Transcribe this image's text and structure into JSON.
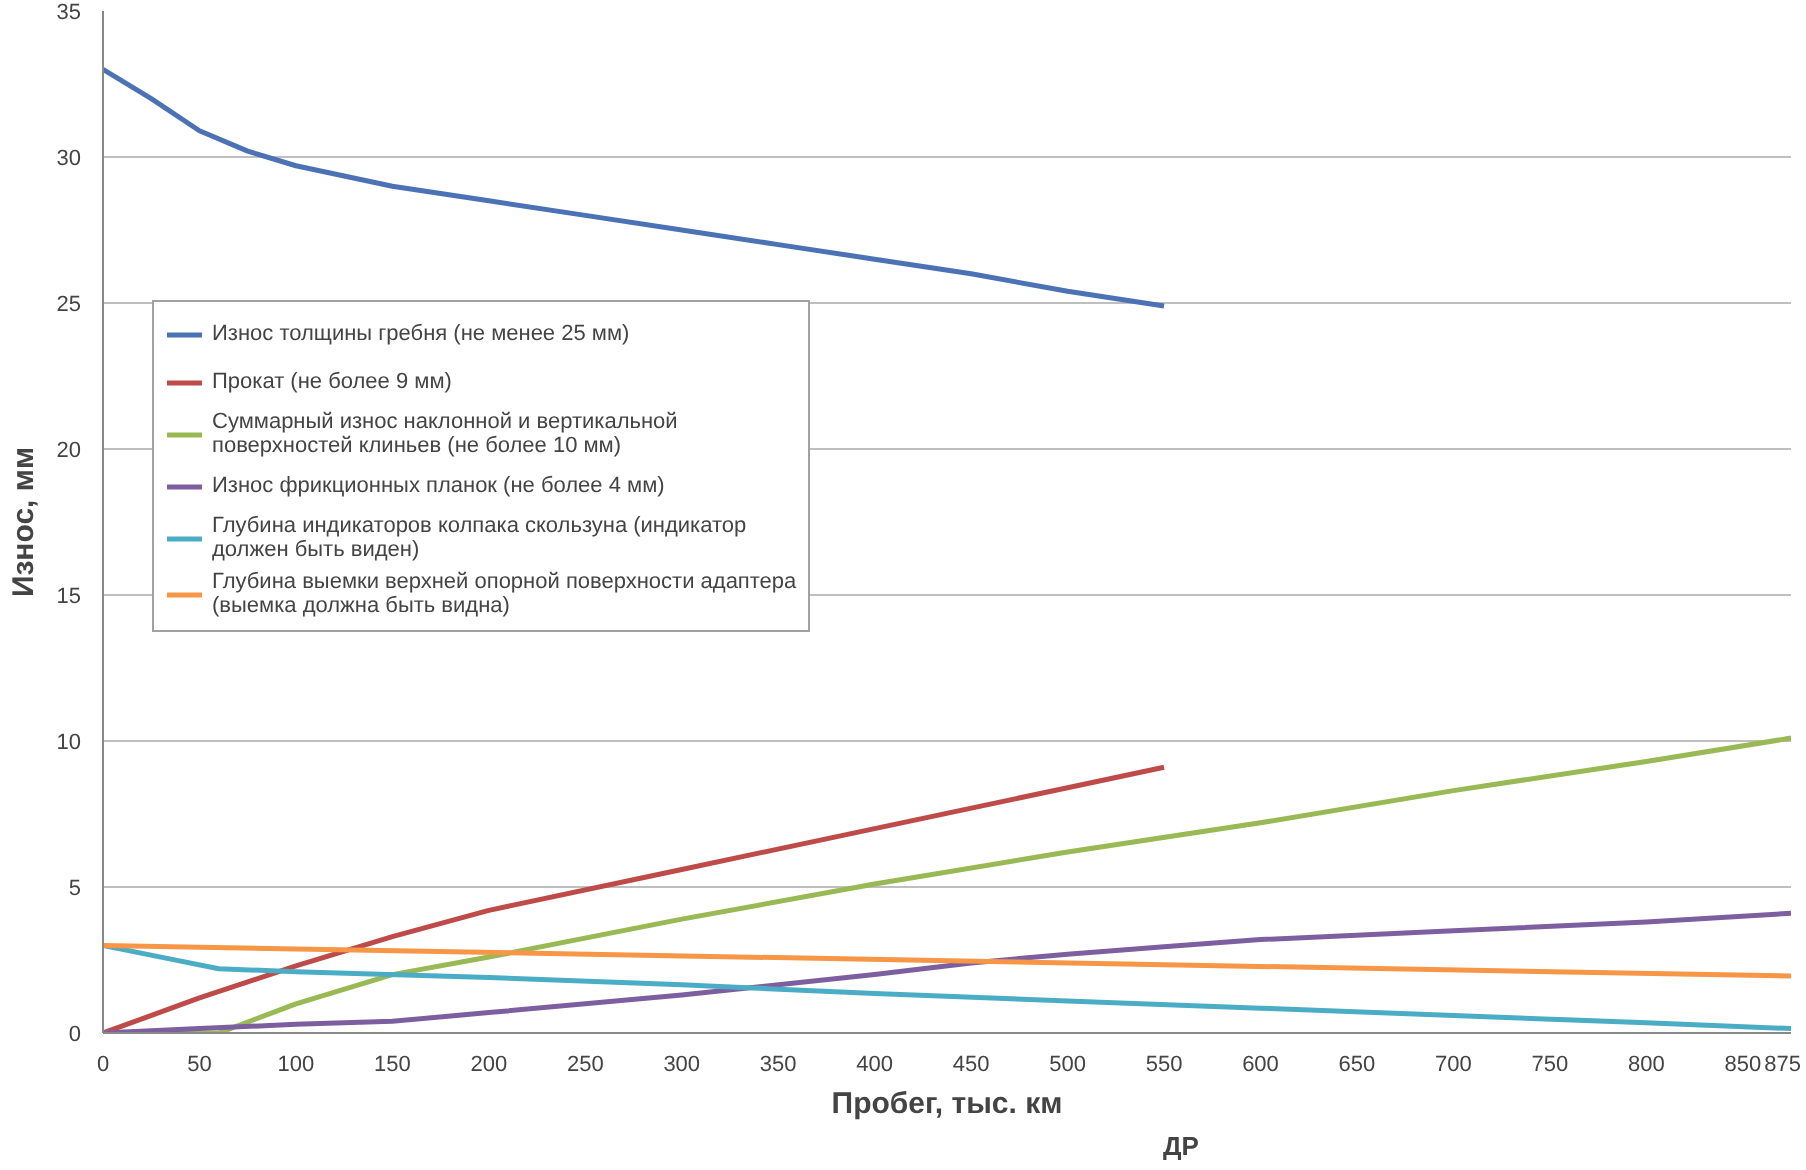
{
  "chart_data": {
    "type": "line",
    "xlabel": "Пробег, тыс. км",
    "ylabel": "Износ, мм",
    "annotations": [
      "ДР"
    ],
    "xlim": [
      0,
      875
    ],
    "ylim": [
      0,
      35
    ],
    "xticks": [
      0,
      50,
      100,
      150,
      200,
      250,
      300,
      350,
      400,
      450,
      500,
      550,
      600,
      650,
      700,
      750,
      800,
      850,
      875
    ],
    "yticks": [
      0,
      5,
      10,
      15,
      20,
      25,
      30,
      35
    ],
    "grid": "y",
    "legend": "left",
    "line_style": "solid",
    "series": [
      {
        "name": "Износ толщины гребня (не менее 25 мм)",
        "color": "#4a72b5",
        "x": [
          0,
          25,
          50,
          75,
          100,
          150,
          200,
          250,
          300,
          350,
          400,
          450,
          500,
          550
        ],
        "values": [
          33,
          32,
          30.9,
          30.2,
          29.7,
          29.0,
          28.5,
          28.0,
          27.5,
          27.0,
          26.5,
          26.0,
          25.4,
          24.9
        ]
      },
      {
        "name": "Прокат (не более 9 мм)",
        "color": "#be4b48",
        "x": [
          0,
          50,
          100,
          150,
          200,
          300,
          400,
          500,
          550
        ],
        "values": [
          0,
          1.2,
          2.3,
          3.3,
          4.2,
          5.6,
          7.0,
          8.4,
          9.1
        ]
      },
      {
        "name": "Суммарный износ наклонной и вертикальной поверхностей клиньев (не более 10 мм)",
        "color": "#98b954",
        "x": [
          0,
          60,
          100,
          150,
          200,
          300,
          400,
          500,
          600,
          700,
          800,
          875
        ],
        "values": [
          0,
          0,
          1.0,
          2.0,
          2.6,
          3.9,
          5.1,
          6.2,
          7.2,
          8.3,
          9.3,
          10.1
        ]
      },
      {
        "name": "Износ фрикционных планок (не более 4 мм)",
        "color": "#7d5fa0",
        "x": [
          0,
          50,
          100,
          150,
          200,
          300,
          400,
          450,
          500,
          550,
          600,
          700,
          800,
          875
        ],
        "values": [
          0,
          0.15,
          0.3,
          0.4,
          0.7,
          1.3,
          2.0,
          2.4,
          2.7,
          2.95,
          3.2,
          3.5,
          3.8,
          4.1
        ]
      },
      {
        "name": "Глубина индикаторов колпака скользуна (индикатор должен быть виден)",
        "color": "#4bacc6",
        "x": [
          0,
          30,
          60,
          100,
          200,
          300,
          400,
          500,
          600,
          700,
          800,
          875
        ],
        "values": [
          3.0,
          2.6,
          2.2,
          2.1,
          1.9,
          1.65,
          1.35,
          1.1,
          0.85,
          0.6,
          0.35,
          0.15
        ]
      },
      {
        "name": "Глубина выемки верхней опорной поверхности адаптера (выемка должна быть видна)",
        "color": "#f79646",
        "x": [
          0,
          875
        ],
        "values": [
          3.0,
          1.95
        ]
      }
    ]
  }
}
